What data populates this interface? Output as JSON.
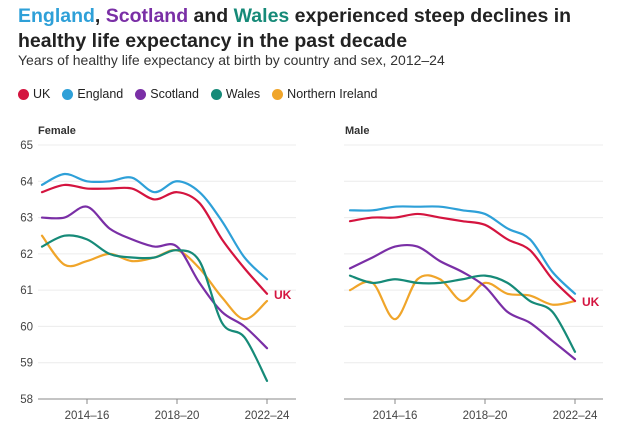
{
  "title": {
    "parts": [
      {
        "text": "England",
        "color": "#2ea0d8"
      },
      {
        "text": ", ",
        "color": "#222"
      },
      {
        "text": "Scotland",
        "color": "#7a2fa6"
      },
      {
        "text": " and ",
        "color": "#222"
      },
      {
        "text": "Wales",
        "color": "#168a78"
      },
      {
        "text": " experienced steep declines in healthy life expectancy in the past decade",
        "color": "#222"
      }
    ]
  },
  "subtitle": "Years of healthy life expectancy at birth by country and sex, 2012–24",
  "chart_data": {
    "type": "line",
    "title": "England, Scotland and Wales experienced steep declines in healthy life expectancy in the past decade",
    "x": [
      "2012–14",
      "2013–15",
      "2014–16",
      "2015–17",
      "2016–18",
      "2017–19",
      "2018–20",
      "2019–21",
      "2020–22",
      "2021–23",
      "2022–24"
    ],
    "xticks": [
      "2014–16",
      "2018–20",
      "2022–24"
    ],
    "ylim": [
      58,
      65
    ],
    "yticks": [
      "58",
      "59",
      "60",
      "61",
      "62",
      "63",
      "64",
      "65"
    ],
    "legend": [
      {
        "name": "UK",
        "color": "#d4143f"
      },
      {
        "name": "England",
        "color": "#2ea0d8"
      },
      {
        "name": "Scotland",
        "color": "#7a2fa6"
      },
      {
        "name": "Wales",
        "color": "#168a78"
      },
      {
        "name": "Northern Ireland",
        "color": "#f0a52a"
      }
    ],
    "direct_label": "UK",
    "panels": [
      {
        "name": "Female",
        "series": [
          {
            "name": "England",
            "values": [
              63.9,
              64.2,
              64.0,
              64.0,
              64.1,
              63.7,
              64.0,
              63.7,
              62.9,
              61.9,
              61.3
            ]
          },
          {
            "name": "Northern Ireland",
            "values": [
              62.5,
              61.7,
              61.8,
              62.0,
              61.8,
              61.9,
              62.1,
              61.6,
              60.8,
              60.2,
              60.7
            ]
          },
          {
            "name": "Scotland",
            "values": [
              63.0,
              63.0,
              63.3,
              62.7,
              62.4,
              62.2,
              62.2,
              61.2,
              60.4,
              60.0,
              59.4
            ]
          },
          {
            "name": "Wales",
            "values": [
              62.2,
              62.5,
              62.4,
              62.0,
              61.9,
              61.9,
              62.1,
              61.8,
              60.1,
              59.7,
              58.5
            ]
          },
          {
            "name": "UK",
            "values": [
              63.7,
              63.9,
              63.8,
              63.8,
              63.8,
              63.5,
              63.7,
              63.4,
              62.4,
              61.6,
              60.9
            ]
          }
        ]
      },
      {
        "name": "Male",
        "series": [
          {
            "name": "England",
            "values": [
              63.2,
              63.2,
              63.3,
              63.3,
              63.3,
              63.2,
              63.1,
              62.7,
              62.4,
              61.5,
              60.9
            ]
          },
          {
            "name": "Northern Ireland",
            "values": [
              61.0,
              61.2,
              60.2,
              61.3,
              61.3,
              60.7,
              61.2,
              60.9,
              60.85,
              60.6,
              60.7
            ]
          },
          {
            "name": "Scotland",
            "values": [
              61.6,
              61.9,
              62.2,
              62.2,
              61.8,
              61.5,
              61.1,
              60.4,
              60.1,
              59.6,
              59.1
            ]
          },
          {
            "name": "Wales",
            "values": [
              61.4,
              61.2,
              61.3,
              61.2,
              61.2,
              61.3,
              61.4,
              61.2,
              60.7,
              60.4,
              59.3
            ]
          },
          {
            "name": "UK",
            "values": [
              62.9,
              63.0,
              63.0,
              63.1,
              63.0,
              62.9,
              62.8,
              62.4,
              62.1,
              61.3,
              60.7
            ]
          }
        ]
      }
    ]
  }
}
